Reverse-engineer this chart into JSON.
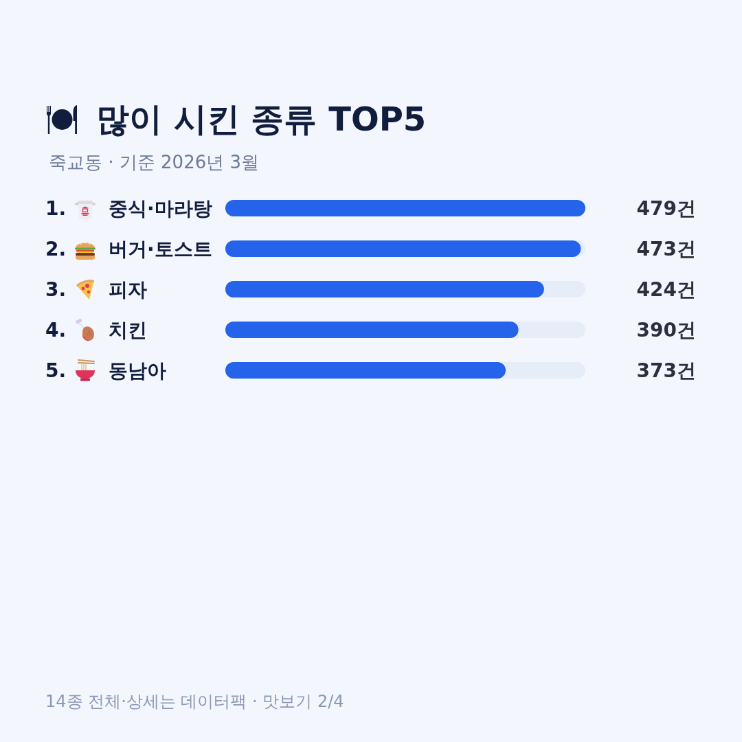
{
  "chart_data": {
    "type": "bar",
    "orientation": "horizontal",
    "title": "많이 시킨 종류 TOP5",
    "subtitle": "죽교동 · 기준 2026년 3월",
    "categories": [
      "중식·마라탕",
      "버거·토스트",
      "피자",
      "치킨",
      "동남아"
    ],
    "values": [
      479,
      473,
      424,
      390,
      373
    ],
    "color": "#2563eb",
    "value_labels": [
      "479건",
      "473건",
      "424건",
      "390건",
      "373건"
    ],
    "annotations": [
      "1.",
      "2.",
      "3.",
      "4.",
      "5.",
      "14종 전체·상세는 데이터팩 · 맛보기 2/4"
    ]
  }
}
